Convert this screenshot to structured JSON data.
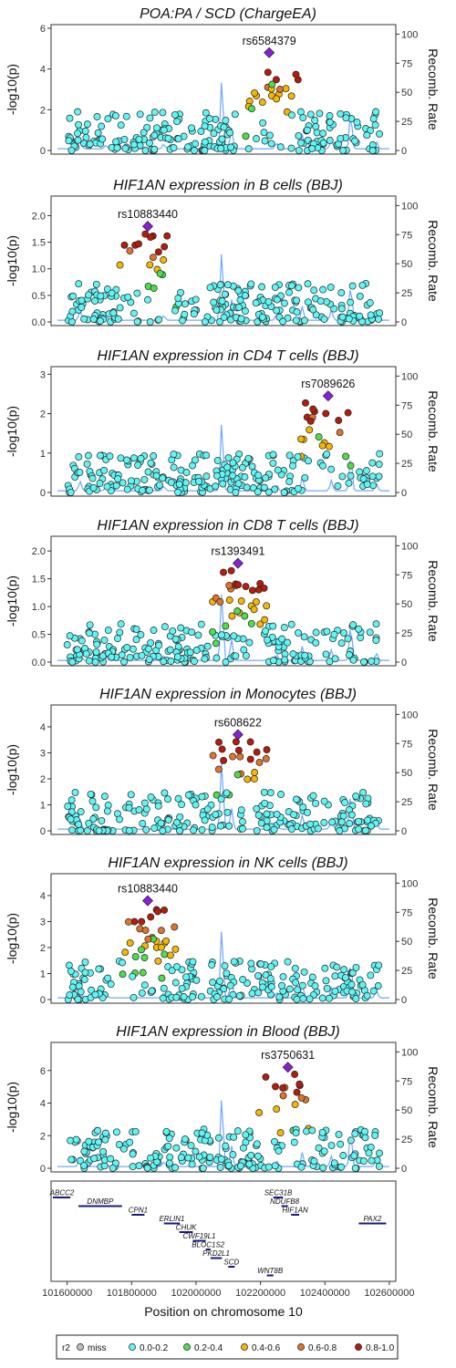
{
  "chart_data": {
    "type": "scatter",
    "description_of_encoding": "",
    "x_axis": {
      "label": "Position on chromosome 10",
      "range": [
        101550000,
        102620000
      ],
      "ticks": [
        101600000,
        101800000,
        102000000,
        102200000,
        102400000,
        102600000
      ]
    },
    "y_left_label": "-log10(p)",
    "y_right_label": "Recomb. Rate",
    "y_right_ticks": [
      0,
      25,
      50,
      75,
      100
    ],
    "legend": {
      "title": "r2",
      "items": [
        {
          "label": "miss",
          "color": "#bdbdbd"
        },
        {
          "label": "0.0-0.2",
          "color": "#5ff5f5"
        },
        {
          "label": "0.2-0.4",
          "color": "#4be04b"
        },
        {
          "label": "0.4-0.6",
          "color": "#f5b700"
        },
        {
          "label": "0.6-0.8",
          "color": "#e0742a"
        },
        {
          "label": "0.8-1.0",
          "color": "#b51c0c"
        }
      ],
      "placement": "bottom"
    },
    "lead_color": "#8a1fd6",
    "recomb_color": "#6fa8ff",
    "panels": [
      {
        "title": "POA:PA / SCD (ChargeEA)",
        "ymax": 6,
        "yticks": [
          0,
          2,
          4,
          6
        ],
        "lead": {
          "label": "rs6584379",
          "x": 102227000,
          "y": 4.8
        }
      },
      {
        "title": "HIF1AN expression in B cells (BBJ)",
        "ymax": 2.3,
        "yticks": [
          0.0,
          0.5,
          1.0,
          1.5,
          2.0
        ],
        "lead": {
          "label": "rs10883440",
          "x": 101850000,
          "y": 1.8
        }
      },
      {
        "title": "HIF1AN expression in CD4 T cells (BBJ)",
        "ymax": 3.1,
        "yticks": [
          0,
          1,
          2,
          3
        ],
        "lead": {
          "label": "rs7089626",
          "x": 102410000,
          "y": 2.45
        }
      },
      {
        "title": "HIF1AN expression in CD8 T cells (BBJ)",
        "ymax": 2.2,
        "yticks": [
          0.0,
          0.5,
          1.0,
          1.5,
          2.0
        ],
        "lead": {
          "label": "rs1393491",
          "x": 102130000,
          "y": 1.78
        }
      },
      {
        "title": "HIF1AN expression in Monocytes (BBJ)",
        "ymax": 4.7,
        "yticks": [
          0,
          1,
          2,
          3,
          4
        ],
        "lead": {
          "label": "rs608622",
          "x": 102130000,
          "y": 3.7
        }
      },
      {
        "title": "HIF1AN expression in NK cells (BBJ)",
        "ymax": 4.7,
        "yticks": [
          0,
          1,
          2,
          3,
          4
        ],
        "lead": {
          "label": "rs10883440",
          "x": 101850000,
          "y": 3.8
        }
      },
      {
        "title": "HIF1AN expression in Blood (BBJ)",
        "ymax": 7.5,
        "yticks": [
          0,
          2,
          4,
          6
        ],
        "lead": {
          "label": "rs3750631",
          "x": 102285000,
          "y": 6.2
        }
      }
    ],
    "genes": [
      {
        "name": "ABCC2",
        "start": 101540000,
        "end": 101610000,
        "row": 0,
        "label_pos": "left"
      },
      {
        "name": "DNMBP",
        "start": 101635000,
        "end": 101770000,
        "row": 1
      },
      {
        "name": "CPN1",
        "start": 101800000,
        "end": 101840000,
        "row": 2
      },
      {
        "name": "ERLIN1",
        "start": 101900000,
        "end": 101950000,
        "row": 3
      },
      {
        "name": "CHUK",
        "start": 101948000,
        "end": 101990000,
        "row": 4
      },
      {
        "name": "CWF19L1",
        "start": 101990000,
        "end": 102030000,
        "row": 5
      },
      {
        "name": "BLOC1S2",
        "start": 102030000,
        "end": 102045000,
        "row": 6
      },
      {
        "name": "PKD2L1",
        "start": 102045000,
        "end": 102080000,
        "row": 7
      },
      {
        "name": "SCD",
        "start": 102100000,
        "end": 102120000,
        "row": 8
      },
      {
        "name": "WNT8B",
        "start": 102220000,
        "end": 102240000,
        "row": 9
      },
      {
        "name": "SEC31B",
        "start": 102240000,
        "end": 102270000,
        "row": 0
      },
      {
        "name": "NDUFB8",
        "start": 102265000,
        "end": 102285000,
        "row": 1
      },
      {
        "name": "HIF1AN",
        "start": 102295000,
        "end": 102320000,
        "row": 2
      },
      {
        "name": "PAX2",
        "start": 102505000,
        "end": 102590000,
        "row": 3
      }
    ]
  }
}
